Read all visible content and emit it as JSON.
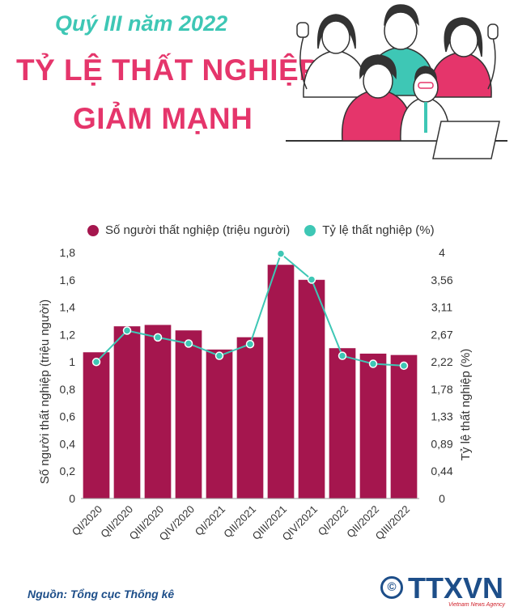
{
  "header": {
    "subtitle": "Quý III năm 2022",
    "title_line1": "TỶ LỆ THẤT NGHIỆP",
    "title_line2": "GIẢM MẠNH"
  },
  "colors": {
    "bar": "#a5164e",
    "line": "#3ec7b5",
    "title": "#e5356b",
    "subtitle": "#3ec7b5",
    "source": "#1d4e89"
  },
  "chart_data": {
    "type": "bar",
    "categories": [
      "QI/2020",
      "QII/2020",
      "QIII/2020",
      "QIV/2020",
      "QI/2021",
      "QII/2021",
      "QIII/2021",
      "QIV/2021",
      "QI/2022",
      "QII/2022",
      "QIII/2022"
    ],
    "series": [
      {
        "name": "Số người thất nghiệp (triệu người)",
        "type": "bar",
        "axis": "left",
        "values": [
          1.07,
          1.26,
          1.27,
          1.23,
          1.09,
          1.18,
          1.71,
          1.6,
          1.1,
          1.06,
          1.05
        ]
      },
      {
        "name": "Tỷ lệ thất nghiệp (%)",
        "type": "line",
        "axis": "right",
        "values": [
          2.22,
          2.73,
          2.62,
          2.52,
          2.32,
          2.51,
          3.98,
          3.56,
          2.32,
          2.19,
          2.16
        ]
      }
    ],
    "ylabel": "Số người thất nghiệp (triệu người)",
    "ylabel_right": "Tỷ lệ thất nghiệp (%)",
    "ylim": [
      0,
      1.8
    ],
    "ylim_right": [
      0,
      4
    ],
    "yticks": [
      "0",
      "0,2",
      "0,4",
      "0,6",
      "0,8",
      "1",
      "1,2",
      "1,4",
      "1,6",
      "1,8"
    ],
    "yticks_right": [
      "0",
      "0,44",
      "0,89",
      "1,33",
      "1,78",
      "2,22",
      "2,67",
      "3,11",
      "3,56",
      "4"
    ],
    "legend_position": "top",
    "grid": false
  },
  "footer": {
    "source": "Nguồn: Tổng cục Thống kê",
    "agency_symbol": "©",
    "agency_name": "TTXVN",
    "agency_sub": "Vietnam News Agency"
  }
}
